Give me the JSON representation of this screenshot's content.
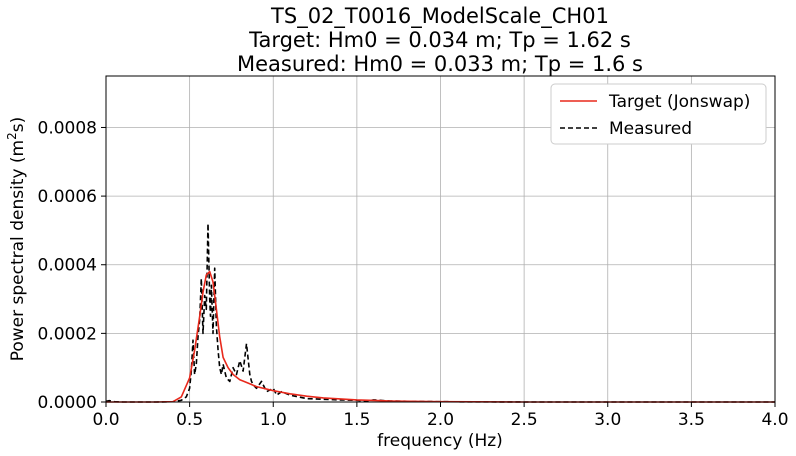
{
  "chart_data": {
    "type": "line",
    "title_lines": [
      "TS_02_T0016_ModelScale_CH01",
      "Target: Hm0 = 0.034 m; Tp = 1.62 s",
      "Measured: Hm0 = 0.033 m; Tp = 1.6 s"
    ],
    "xlabel": "frequency (Hz)",
    "ylabel_main": "Power spectral density (m",
    "ylabel_sup": "2",
    "ylabel_end": "s)",
    "xlim": [
      0.0,
      4.0
    ],
    "ylim": [
      0.0,
      0.00095
    ],
    "xticks": [
      0.0,
      0.5,
      1.0,
      1.5,
      2.0,
      2.5,
      3.0,
      3.5,
      4.0
    ],
    "xtick_labels": [
      "0.0",
      "0.5",
      "1.0",
      "1.5",
      "2.0",
      "2.5",
      "3.0",
      "3.5",
      "4.0"
    ],
    "yticks": [
      0.0,
      0.0002,
      0.0004,
      0.0006,
      0.0008
    ],
    "ytick_labels": [
      "0.0000",
      "0.0002",
      "0.0004",
      "0.0006",
      "0.0008"
    ],
    "grid": true,
    "legend_position": "top-right",
    "series": [
      {
        "name": "Target (Jonswap)",
        "color": "#e8291c",
        "style": "solid",
        "x": [
          0.0,
          0.3,
          0.4,
          0.45,
          0.5,
          0.53,
          0.56,
          0.58,
          0.6,
          0.62,
          0.64,
          0.66,
          0.68,
          0.7,
          0.73,
          0.76,
          0.8,
          0.85,
          0.9,
          1.0,
          1.1,
          1.2,
          1.3,
          1.5,
          1.7,
          2.0,
          2.5,
          3.0,
          3.5,
          4.0
        ],
        "y": [
          0.0,
          0.0,
          1e-06,
          1.5e-05,
          7e-05,
          0.00015,
          0.00025,
          0.00032,
          0.00037,
          0.00038,
          0.00035,
          0.00027,
          0.00019,
          0.00013,
          0.0001,
          8e-05,
          6.5e-05,
          5.5e-05,
          4.5e-05,
          3.3e-05,
          2.4e-05,
          1.7e-05,
          1.2e-05,
          6e-06,
          3e-06,
          1e-06,
          0.0,
          0.0,
          0.0,
          0.0
        ]
      },
      {
        "name": "Measured",
        "color": "#000000",
        "style": "dashed",
        "x": [
          0.0,
          0.02,
          0.05,
          0.1,
          0.2,
          0.3,
          0.4,
          0.45,
          0.48,
          0.5,
          0.51,
          0.52,
          0.53,
          0.54,
          0.55,
          0.56,
          0.57,
          0.58,
          0.59,
          0.6,
          0.61,
          0.62,
          0.625,
          0.63,
          0.64,
          0.65,
          0.66,
          0.67,
          0.68,
          0.69,
          0.7,
          0.72,
          0.74,
          0.76,
          0.78,
          0.8,
          0.82,
          0.84,
          0.86,
          0.87,
          0.88,
          0.9,
          0.93,
          0.96,
          1.0,
          1.02,
          1.05,
          1.1,
          1.15,
          1.2,
          1.3,
          1.4,
          1.5,
          1.55,
          1.6,
          1.7,
          1.8,
          2.0,
          2.5,
          3.0,
          3.5,
          4.0
        ],
        "y": [
          2e-06,
          4e-06,
          1e-06,
          0.0,
          0.0,
          0.0,
          1e-06,
          5e-06,
          1.5e-05,
          4e-05,
          9e-05,
          0.00018,
          8e-05,
          0.00011,
          0.00019,
          0.00024,
          0.00036,
          0.0002,
          0.00031,
          0.00027,
          0.00052,
          0.0003,
          0.00025,
          0.00034,
          0.0002,
          0.00039,
          0.00022,
          0.00015,
          0.0001,
          8e-05,
          0.00011,
          7e-05,
          6e-05,
          0.0001,
          8e-05,
          0.00012,
          9e-05,
          0.00017,
          8e-05,
          6e-05,
          5e-05,
          4e-05,
          6e-05,
          3e-05,
          4e-05,
          2e-05,
          3e-05,
          2e-05,
          1.5e-05,
          1e-05,
          8e-06,
          6e-06,
          5e-06,
          2e-06,
          6e-06,
          3e-06,
          2e-06,
          1e-06,
          0.0,
          0.0,
          0.0,
          0.0
        ]
      }
    ]
  }
}
